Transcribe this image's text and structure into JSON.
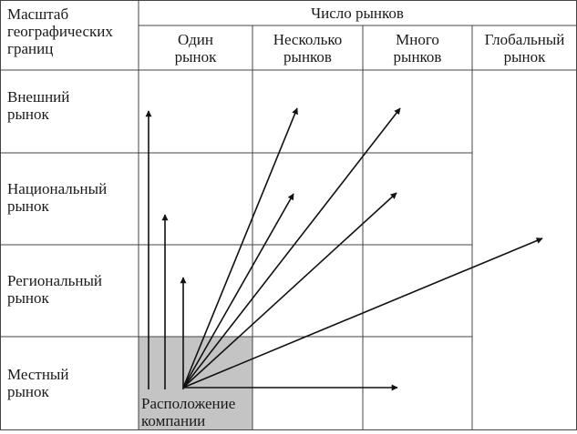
{
  "header": {
    "row_axis_title": "Масштаб\nгеографических\nграниц",
    "column_axis_title": "Число рынков"
  },
  "columns": [
    "Один\nрынок",
    "Несколько\nрынков",
    "Много\nрынков",
    "Глобальный\nрынок"
  ],
  "rows": [
    "Внешний\nрынок",
    "Национальный\nрынок",
    "Региональный\nрынок",
    "Местный\nрынок"
  ],
  "origin_label": "Расположение\nкомпании",
  "colors": {
    "grid": "#444444",
    "arrows": "#111111",
    "origin_fill": "#c4c4c4",
    "text": "#1a1a1a"
  }
}
